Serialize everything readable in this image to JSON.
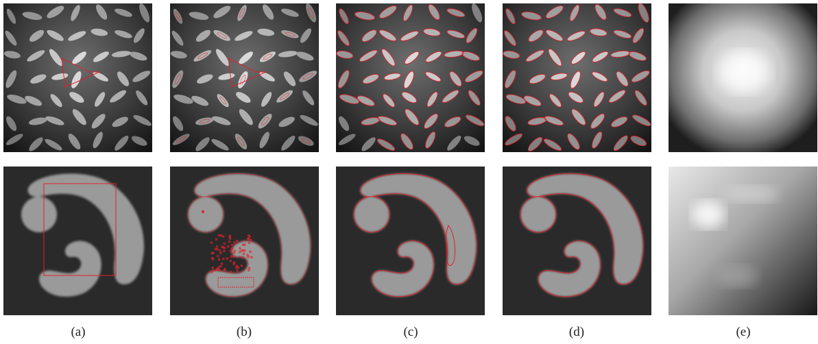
{
  "figure": {
    "columns": [
      {
        "id": "a",
        "label": "(a)"
      },
      {
        "id": "b",
        "label": "(b)"
      },
      {
        "id": "c",
        "label": "(c)"
      },
      {
        "id": "d",
        "label": "(d)"
      },
      {
        "id": "e",
        "label": "(e)"
      }
    ],
    "rows": [
      "rice-grains",
      "synthetic-blob"
    ],
    "contour_color": "#e0202a"
  }
}
